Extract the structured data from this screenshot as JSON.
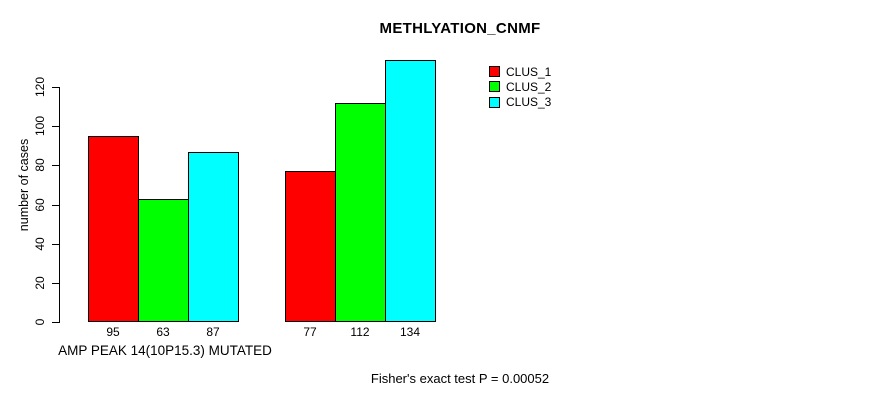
{
  "chart_data": {
    "type": "bar",
    "title": "METHLYATION_CNMF",
    "ylabel": "number of cases",
    "annotation": "Fisher's exact test P = 0.00052",
    "categories": [
      "AMP PEAK 14(10P15.3) MUTATED",
      ""
    ],
    "series": [
      {
        "name": "CLUS_1",
        "color": "#FF0000",
        "values": [
          95,
          77
        ]
      },
      {
        "name": "CLUS_2",
        "color": "#00FF00",
        "values": [
          63,
          112
        ]
      },
      {
        "name": "CLUS_3",
        "color": "#00FFFF",
        "values": [
          87,
          134
        ]
      }
    ],
    "yticks": [
      0,
      20,
      40,
      60,
      80,
      100,
      120
    ],
    "ylim": [
      0,
      137
    ],
    "grid": false,
    "legend_position": "top-right",
    "show_bar_value_labels": true,
    "background_color": "#FFFFFF",
    "text_color": "#000000"
  }
}
